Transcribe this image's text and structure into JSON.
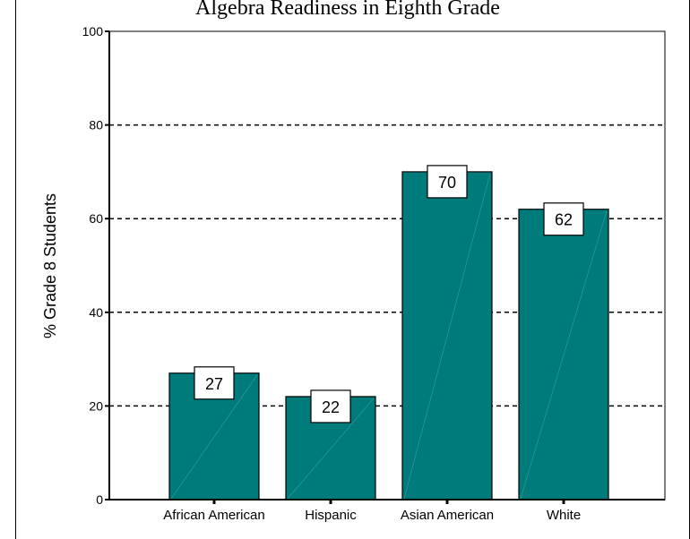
{
  "chart_data": {
    "type": "bar",
    "title": "Algebra Readiness in Eighth Grade",
    "ylabel": "% Grade 8 Students",
    "xlabel": "",
    "categories": [
      "African American",
      "Hispanic",
      "Asian American",
      "White"
    ],
    "values": [
      27,
      22,
      70,
      62
    ],
    "data_labels": [
      "27",
      "22",
      "70",
      "62"
    ],
    "ylim": [
      0,
      100
    ],
    "yticks": [
      0,
      20,
      40,
      60,
      80,
      100
    ],
    "ytick_labels": [
      "0",
      "20",
      "40",
      "60",
      "80",
      "100"
    ],
    "grid": true,
    "legend": "none",
    "colors": {
      "bar": "#007b7b",
      "bar_edge": "#000000",
      "grid": "#000000"
    }
  }
}
